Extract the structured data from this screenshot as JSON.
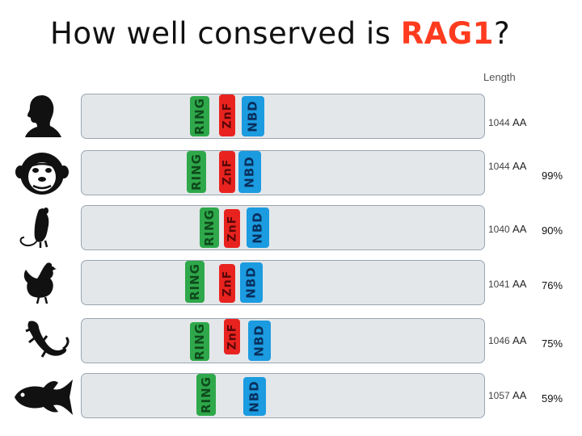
{
  "title": {
    "prefix": "How well conserved is ",
    "highlight": "RAG1",
    "suffix": "?"
  },
  "length_header": "Length",
  "domain_labels": {
    "ring": "RING",
    "znf": "ZnF",
    "nbd": "NBD"
  },
  "unit": "AA",
  "colors": {
    "ring": "#2ea84a",
    "znf": "#e8231f",
    "nbd": "#1b9be0",
    "title_highlight": "#ff3b1f"
  },
  "species": [
    {
      "icon": "human-silhouette-icon",
      "length": "1044",
      "unit": "AA",
      "conservation": ""
    },
    {
      "icon": "chimpanzee-silhouette-icon",
      "length": "1044",
      "unit": "AA",
      "conservation": "99%"
    },
    {
      "icon": "mouse-silhouette-icon",
      "length": "1040",
      "unit": "AA",
      "conservation": "90%"
    },
    {
      "icon": "chicken-silhouette-icon",
      "length": "1041",
      "unit": "AA",
      "conservation": "76%"
    },
    {
      "icon": "lizard-silhouette-icon",
      "length": "1046",
      "unit": "AA",
      "conservation": "75%"
    },
    {
      "icon": "fish-silhouette-icon",
      "length": "1057",
      "unit": "AA",
      "conservation": "59%"
    }
  ]
}
